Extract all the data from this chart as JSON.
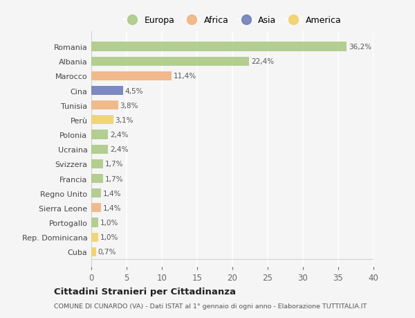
{
  "countries": [
    "Romania",
    "Albania",
    "Marocco",
    "Cina",
    "Tunisia",
    "Perù",
    "Polonia",
    "Ucraina",
    "Svizzera",
    "Francia",
    "Regno Unito",
    "Sierra Leone",
    "Portogallo",
    "Rep. Dominicana",
    "Cuba"
  ],
  "values": [
    36.2,
    22.4,
    11.4,
    4.5,
    3.8,
    3.1,
    2.4,
    2.4,
    1.7,
    1.7,
    1.4,
    1.4,
    1.0,
    1.0,
    0.7
  ],
  "labels": [
    "36,2%",
    "22,4%",
    "11,4%",
    "4,5%",
    "3,8%",
    "3,1%",
    "2,4%",
    "2,4%",
    "1,7%",
    "1,7%",
    "1,4%",
    "1,4%",
    "1,0%",
    "1,0%",
    "0,7%"
  ],
  "continents": [
    "Europa",
    "Europa",
    "Africa",
    "Asia",
    "Africa",
    "America",
    "Europa",
    "Europa",
    "Europa",
    "Europa",
    "Europa",
    "Africa",
    "Europa",
    "America",
    "America"
  ],
  "colors": {
    "Europa": "#a8c87e",
    "Africa": "#f0b07a",
    "Asia": "#6878b8",
    "America": "#f0d060"
  },
  "legend_order": [
    "Europa",
    "Africa",
    "Asia",
    "America"
  ],
  "title": "Cittadini Stranieri per Cittadinanza",
  "subtitle": "COMUNE DI CUNARDO (VA) - Dati ISTAT al 1° gennaio di ogni anno - Elaborazione TUTTITALIA.IT",
  "xlim": [
    0,
    40
  ],
  "xticks": [
    0,
    5,
    10,
    15,
    20,
    25,
    30,
    35,
    40
  ],
  "background_color": "#f5f5f5",
  "grid_color": "#ffffff"
}
